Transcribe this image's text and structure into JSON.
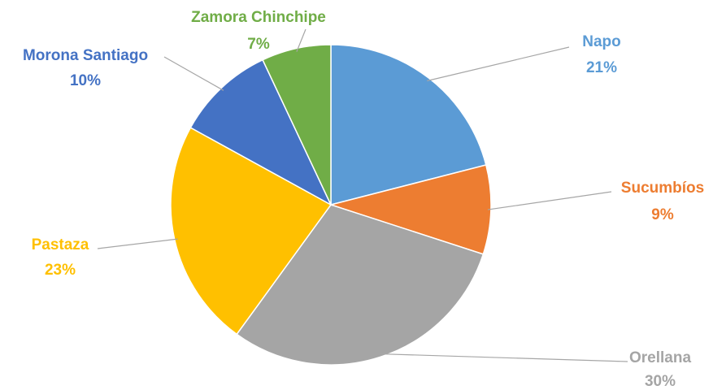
{
  "chart_data": {
    "type": "pie",
    "categories": [
      "Napo",
      "Sucumbíos",
      "Orellana",
      "Pastaza",
      "Morona Santiago",
      "Zamora Chinchipe"
    ],
    "values": [
      21,
      9,
      30,
      23,
      10,
      7
    ],
    "value_labels": [
      "21%",
      "9%",
      "30%",
      "23%",
      "10%",
      "7%"
    ],
    "colors": [
      "#5b9bd5",
      "#ed7d31",
      "#a5a5a5",
      "#ffc000",
      "#4472c4",
      "#70ad47"
    ]
  }
}
